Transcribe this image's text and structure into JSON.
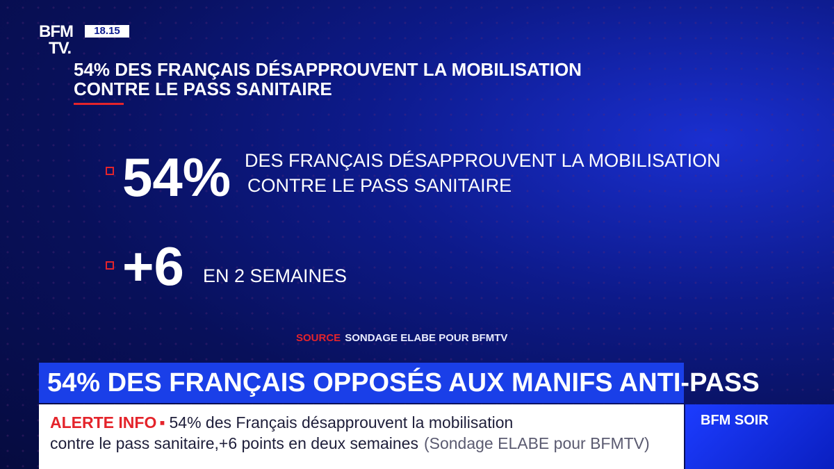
{
  "channel": {
    "logo_line1": "BFM",
    "logo_line2": "TV.",
    "time": "18.15"
  },
  "title": {
    "line1": "54% DES FRANÇAIS DÉSAPPROUVENT LA MOBILISATION",
    "line2": "CONTRE LE PASS SANITAIRE"
  },
  "stats": [
    {
      "value": "54%",
      "text_line1": "DES FRANÇAIS DÉSAPPROUVENT LA MOBILISATION",
      "text_line2": "CONTRE LE PASS SANITAIRE"
    },
    {
      "value": "+6",
      "text_line1": "EN 2 SEMAINES"
    }
  ],
  "source": {
    "label": "SOURCE",
    "text": "SONDAGE ELABE POUR BFMTV"
  },
  "headline": "54% DES FRANÇAIS OPPOSÉS AUX MANIFS ANTI-PASS",
  "ticker": {
    "label": "ALERTE INFO",
    "separator": "▪",
    "line1_text": "54% des Français désapprouvent la mobilisation",
    "line2_text": "contre le pass sanitaire,+6 points en deux semaines",
    "line2_source": "(Sondage ELABE pour BFMTV)"
  },
  "show": {
    "name": "BFM SOIR"
  },
  "colors": {
    "accent_red": "#e4242b",
    "headline_blue": "#1a3fe8",
    "background_navy": "#0b1470"
  }
}
